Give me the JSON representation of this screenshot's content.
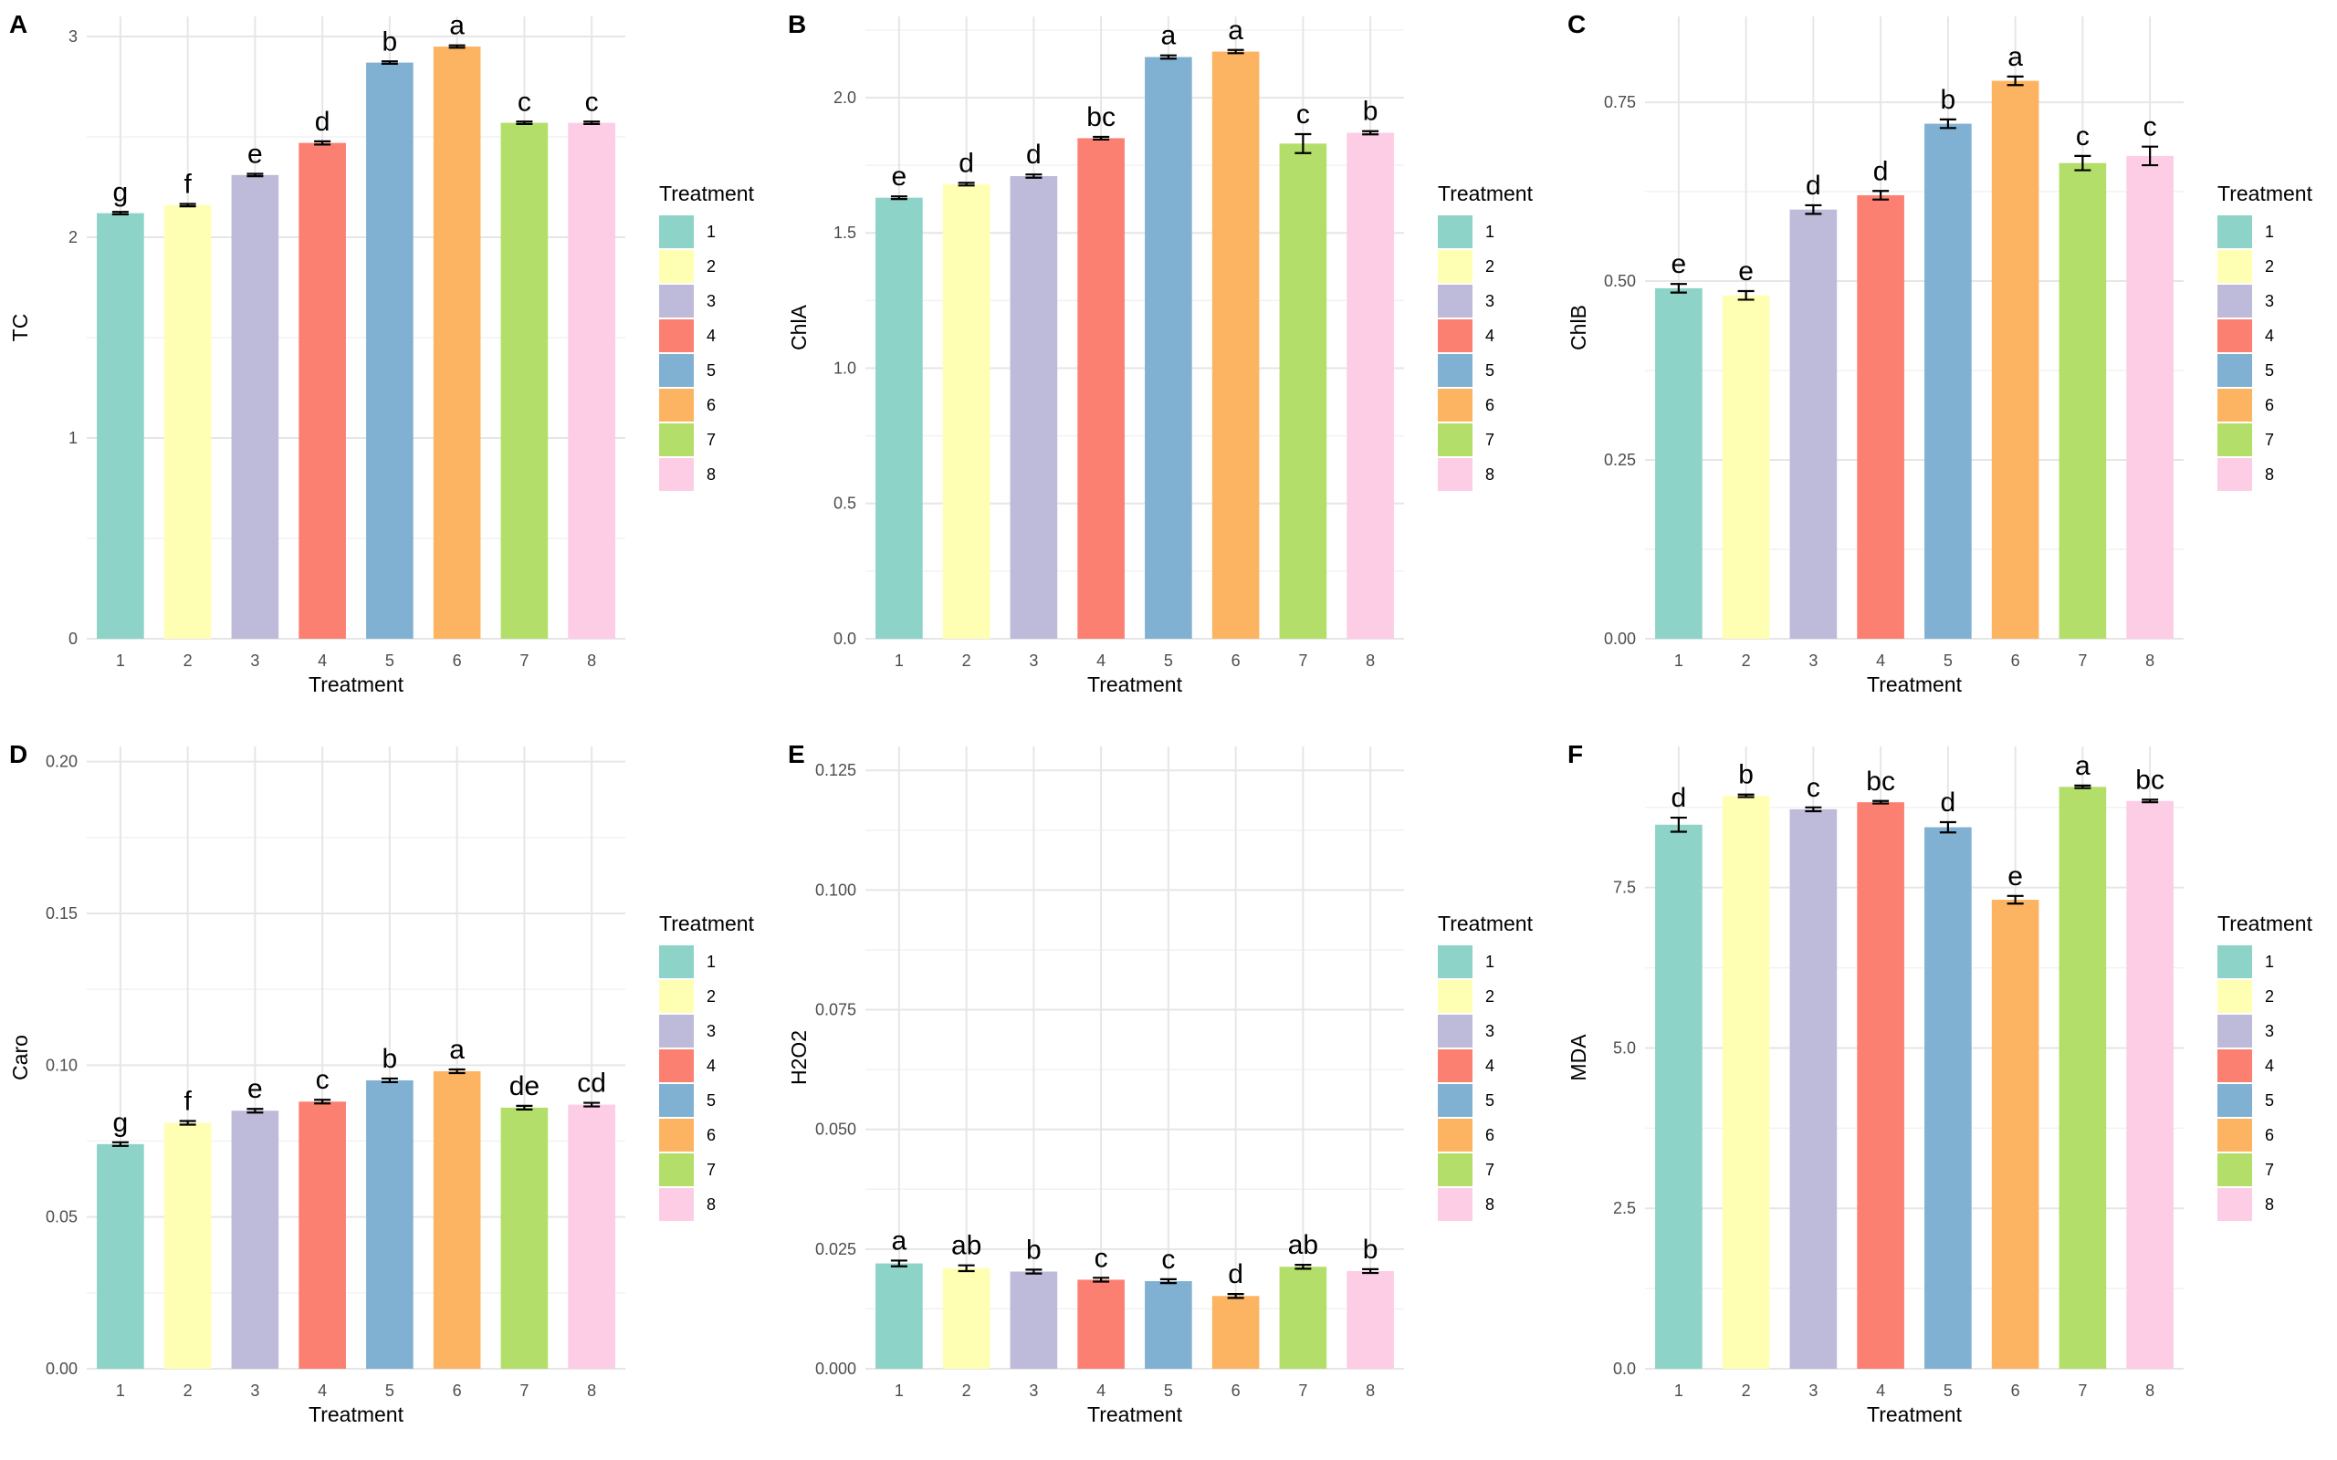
{
  "chart_data": [
    {
      "type": "bar",
      "tag": "A",
      "xlabel": "Treatment",
      "ylabel": "TC",
      "categories": [
        "1",
        "2",
        "3",
        "4",
        "5",
        "6",
        "7",
        "8"
      ],
      "values": [
        2.12,
        2.16,
        2.31,
        2.47,
        2.87,
        2.95,
        2.57,
        2.57
      ],
      "errors": [
        0.006,
        0.006,
        0.006,
        0.008,
        0.006,
        0.006,
        0.006,
        0.006
      ],
      "letters": [
        "g",
        "f",
        "e",
        "d",
        "b",
        "a",
        "c",
        "c"
      ],
      "ylim": [
        0,
        3.1
      ],
      "yticks": [
        0,
        1,
        2,
        3
      ],
      "ytick_labels": [
        "0",
        "1",
        "2",
        "3"
      ],
      "grid": true,
      "legend_position": "right"
    },
    {
      "type": "bar",
      "tag": "B",
      "xlabel": "Treatment",
      "ylabel": "ChlA",
      "categories": [
        "1",
        "2",
        "3",
        "4",
        "5",
        "6",
        "7",
        "8"
      ],
      "values": [
        1.63,
        1.68,
        1.71,
        1.85,
        2.15,
        2.17,
        1.83,
        1.87
      ],
      "errors": [
        0.005,
        0.005,
        0.006,
        0.005,
        0.006,
        0.006,
        0.035,
        0.006
      ],
      "letters": [
        "e",
        "d",
        "d",
        "bc",
        "a",
        "a",
        "c",
        "b"
      ],
      "ylim": [
        0,
        2.3
      ],
      "yticks": [
        0,
        0.5,
        1,
        1.5,
        2
      ],
      "ytick_labels": [
        "0.0",
        "0.5",
        "1.0",
        "1.5",
        "2.0"
      ],
      "grid": true,
      "legend_position": "right"
    },
    {
      "type": "bar",
      "tag": "C",
      "xlabel": "Treatment",
      "ylabel": "ChlB",
      "categories": [
        "1",
        "2",
        "3",
        "4",
        "5",
        "6",
        "7",
        "8"
      ],
      "values": [
        0.49,
        0.48,
        0.6,
        0.62,
        0.72,
        0.78,
        0.665,
        0.675
      ],
      "errors": [
        0.006,
        0.006,
        0.006,
        0.006,
        0.006,
        0.006,
        0.01,
        0.013
      ],
      "letters": [
        "e",
        "e",
        "d",
        "d",
        "b",
        "a",
        "c",
        "c"
      ],
      "ylim": [
        0,
        0.87
      ],
      "yticks": [
        0,
        0.25,
        0.5,
        0.75
      ],
      "ytick_labels": [
        "0.00",
        "0.25",
        "0.50",
        "0.75"
      ],
      "grid": true,
      "legend_position": "right"
    },
    {
      "type": "bar",
      "tag": "D",
      "xlabel": "Treatment",
      "ylabel": "Caro",
      "categories": [
        "1",
        "2",
        "3",
        "4",
        "5",
        "6",
        "7",
        "8"
      ],
      "values": [
        0.074,
        0.081,
        0.085,
        0.088,
        0.095,
        0.098,
        0.086,
        0.087
      ],
      "errors": [
        0.0006,
        0.0006,
        0.0006,
        0.0006,
        0.0006,
        0.0006,
        0.0006,
        0.0006
      ],
      "letters": [
        "g",
        "f",
        "e",
        "c",
        "b",
        "a",
        "de",
        "cd"
      ],
      "ylim": [
        0,
        0.205
      ],
      "yticks": [
        0,
        0.05,
        0.1,
        0.15,
        0.2
      ],
      "ytick_labels": [
        "0.00",
        "0.05",
        "0.10",
        "0.15",
        "0.20"
      ],
      "grid": true,
      "legend_position": "right"
    },
    {
      "type": "bar",
      "tag": "E",
      "xlabel": "Treatment",
      "ylabel": "H2O2",
      "categories": [
        "1",
        "2",
        "3",
        "4",
        "5",
        "6",
        "7",
        "8"
      ],
      "values": [
        0.022,
        0.021,
        0.0203,
        0.0186,
        0.0183,
        0.0152,
        0.0213,
        0.0204
      ],
      "errors": [
        0.0006,
        0.0006,
        0.0004,
        0.0004,
        0.0004,
        0.0004,
        0.0004,
        0.0004
      ],
      "letters": [
        "a",
        "ab",
        "b",
        "c",
        "c",
        "d",
        "ab",
        "b"
      ],
      "ylim": [
        0,
        0.13
      ],
      "yticks": [
        0,
        0.025,
        0.05,
        0.075,
        0.1,
        0.125
      ],
      "ytick_labels": [
        "0.000",
        "0.025",
        "0.050",
        "0.075",
        "0.100",
        "0.125"
      ],
      "grid": true,
      "legend_position": "right"
    },
    {
      "type": "bar",
      "tag": "F",
      "xlabel": "Treatment",
      "ylabel": "MDA",
      "categories": [
        "1",
        "2",
        "3",
        "4",
        "5",
        "6",
        "7",
        "8"
      ],
      "values": [
        8.48,
        8.93,
        8.72,
        8.83,
        8.44,
        7.31,
        9.07,
        8.85
      ],
      "errors": [
        0.11,
        0.02,
        0.03,
        0.02,
        0.08,
        0.06,
        0.02,
        0.02
      ],
      "letters": [
        "d",
        "b",
        "c",
        "bc",
        "d",
        "e",
        "a",
        "bc"
      ],
      "ylim": [
        0,
        9.7
      ],
      "yticks": [
        0,
        2.5,
        5,
        7.5
      ],
      "ytick_labels": [
        "0.0",
        "2.5",
        "5.0",
        "7.5"
      ],
      "grid": true,
      "legend_position": "right"
    }
  ],
  "legend": {
    "title": "Treatment",
    "items": [
      "1",
      "2",
      "3",
      "4",
      "5",
      "6",
      "7",
      "8"
    ]
  },
  "colors": [
    "#8dd3c7",
    "#ffffb3",
    "#bebada",
    "#fb8072",
    "#80b1d3",
    "#fdb462",
    "#b3de69",
    "#fccde5"
  ]
}
